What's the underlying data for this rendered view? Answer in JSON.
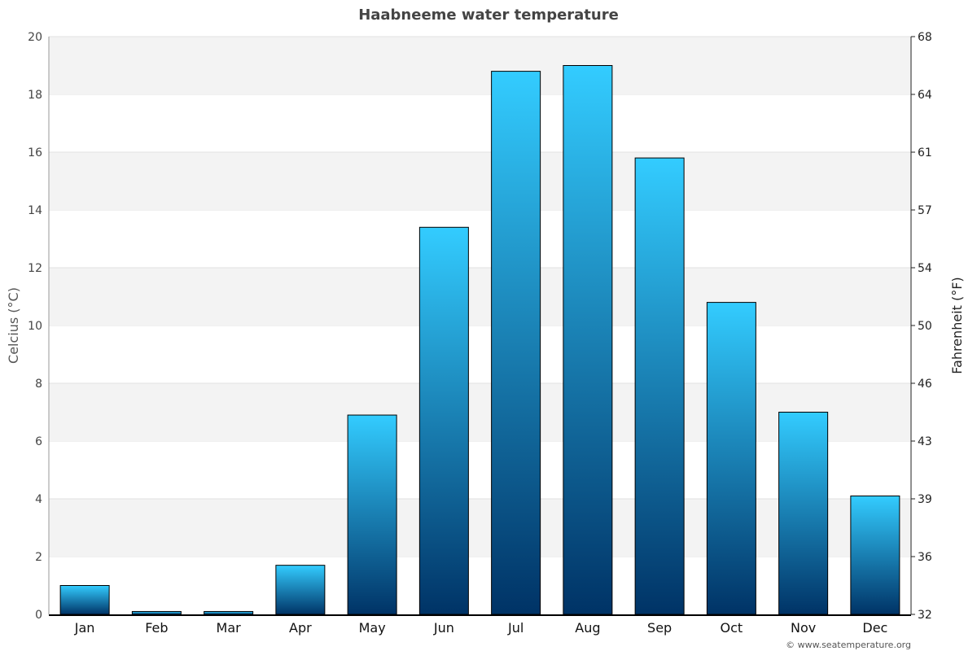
{
  "chart_data": {
    "type": "bar",
    "title": "Haabneeme water temperature",
    "categories": [
      "Jan",
      "Feb",
      "Mar",
      "Apr",
      "May",
      "Jun",
      "Jul",
      "Aug",
      "Sep",
      "Oct",
      "Nov",
      "Dec"
    ],
    "values": [
      1.0,
      0.1,
      0.1,
      1.7,
      6.9,
      13.4,
      18.8,
      19.0,
      15.8,
      10.8,
      7.0,
      4.1
    ],
    "ylabel": "Celcius (°C)",
    "ylabel_right": "Fahrenheit (°F)",
    "ylim": [
      0,
      20
    ],
    "yticks": [
      0,
      2,
      4,
      6,
      8,
      10,
      12,
      14,
      16,
      18,
      20
    ],
    "yticks_right": [
      "32",
      "36",
      "39",
      "43",
      "46",
      "50",
      "54",
      "57",
      "61",
      "64",
      "68"
    ],
    "grid": true,
    "colors": {
      "bar_top": "#33ccff",
      "bar_bottom": "#003366",
      "band": "#f3f3f3"
    }
  },
  "footer": {
    "credit": "© www.seatemperature.org"
  }
}
